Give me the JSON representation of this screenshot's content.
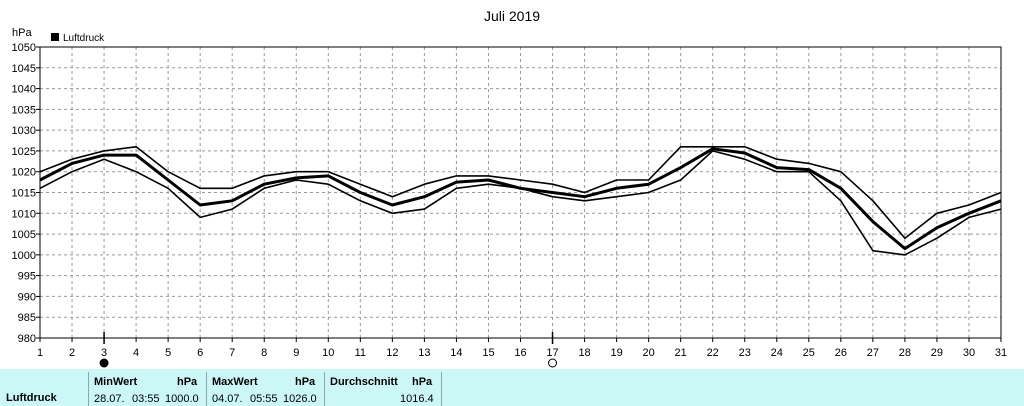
{
  "chart_data": {
    "type": "line",
    "title": "Juli 2019",
    "ylabel": "hPa",
    "legend": "Luftdruck",
    "legend_position": "top-left",
    "grid": true,
    "ylim": [
      980,
      1050
    ],
    "yticks": [
      980,
      985,
      990,
      995,
      1000,
      1005,
      1010,
      1015,
      1020,
      1025,
      1030,
      1035,
      1040,
      1045,
      1050
    ],
    "x": [
      1,
      2,
      3,
      4,
      5,
      6,
      7,
      8,
      9,
      10,
      11,
      12,
      13,
      14,
      15,
      16,
      17,
      18,
      19,
      20,
      21,
      22,
      23,
      24,
      25,
      26,
      27,
      28,
      29,
      30,
      31
    ],
    "series": [
      {
        "name": "Luftdruck",
        "role": "max",
        "values": [
          1020,
          1023,
          1025,
          1026,
          1020,
          1016,
          1016,
          1019,
          1020,
          1020,
          1017,
          1014,
          1017,
          1019,
          1019,
          1018,
          1017,
          1015,
          1018,
          1018,
          1026,
          1026,
          1026,
          1023,
          1022,
          1020,
          1013,
          1004,
          1010,
          1012,
          1015
        ]
      },
      {
        "name": "Luftdruck",
        "role": "avg",
        "values": [
          1018,
          1022,
          1024,
          1024,
          1018,
          1012,
          1013,
          1017,
          1018.5,
          1019,
          1015,
          1012,
          1014,
          1017.5,
          1018,
          1016,
          1015,
          1014,
          1016,
          1017,
          1021,
          1025.5,
          1024.5,
          1021,
          1020.5,
          1016,
          1008,
          1001.5,
          1006.5,
          1010,
          1013
        ]
      },
      {
        "name": "Luftdruck",
        "role": "min",
        "values": [
          1016,
          1020,
          1023,
          1020,
          1016,
          1009,
          1011,
          1016,
          1018,
          1017,
          1013,
          1010,
          1011,
          1016,
          1017,
          1016,
          1014,
          1013,
          1014,
          1015,
          1018,
          1025,
          1023,
          1020,
          1020,
          1013,
          1001,
          1000,
          1004,
          1009,
          1011
        ]
      }
    ],
    "markers": [
      {
        "x": 3,
        "symbol": "filled-circle"
      },
      {
        "x": 17,
        "symbol": "open-circle"
      }
    ]
  },
  "stats": {
    "row_label": "Luftdruck",
    "min": {
      "header": "MinWert",
      "unit": "hPa",
      "date": "28.07.",
      "time": "03:55",
      "value": "1000.0"
    },
    "max": {
      "header": "MaxWert",
      "unit": "hPa",
      "date": "04.07.",
      "time": "05:55",
      "value": "1026.0"
    },
    "avg": {
      "header": "Durchschnitt",
      "unit": "hPa",
      "value": "1016.4"
    }
  }
}
